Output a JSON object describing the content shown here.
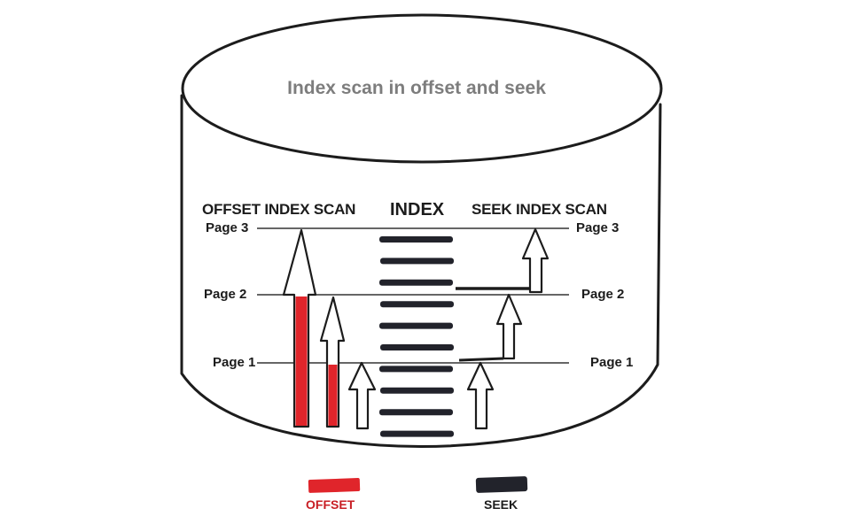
{
  "title": "Index scan in offset and seek",
  "headers": {
    "offset": "OFFSET INDEX SCAN",
    "index": "INDEX",
    "seek": "SEEK INDEX SCAN"
  },
  "pages_left": [
    "Page 3",
    "Page 2",
    "Page 1"
  ],
  "pages_right": [
    "Page 3",
    "Page 2",
    "Page 1"
  ],
  "legend": [
    {
      "label": "OFFSET",
      "color": "#e0252b"
    },
    {
      "label": "SEEK",
      "color": "#22232b"
    }
  ],
  "colors": {
    "offset_red": "#e0252b",
    "seek_dark": "#22232b",
    "outline": "#1c1c1c",
    "title_gray": "#7d7d7d"
  },
  "index_row_count": 10
}
